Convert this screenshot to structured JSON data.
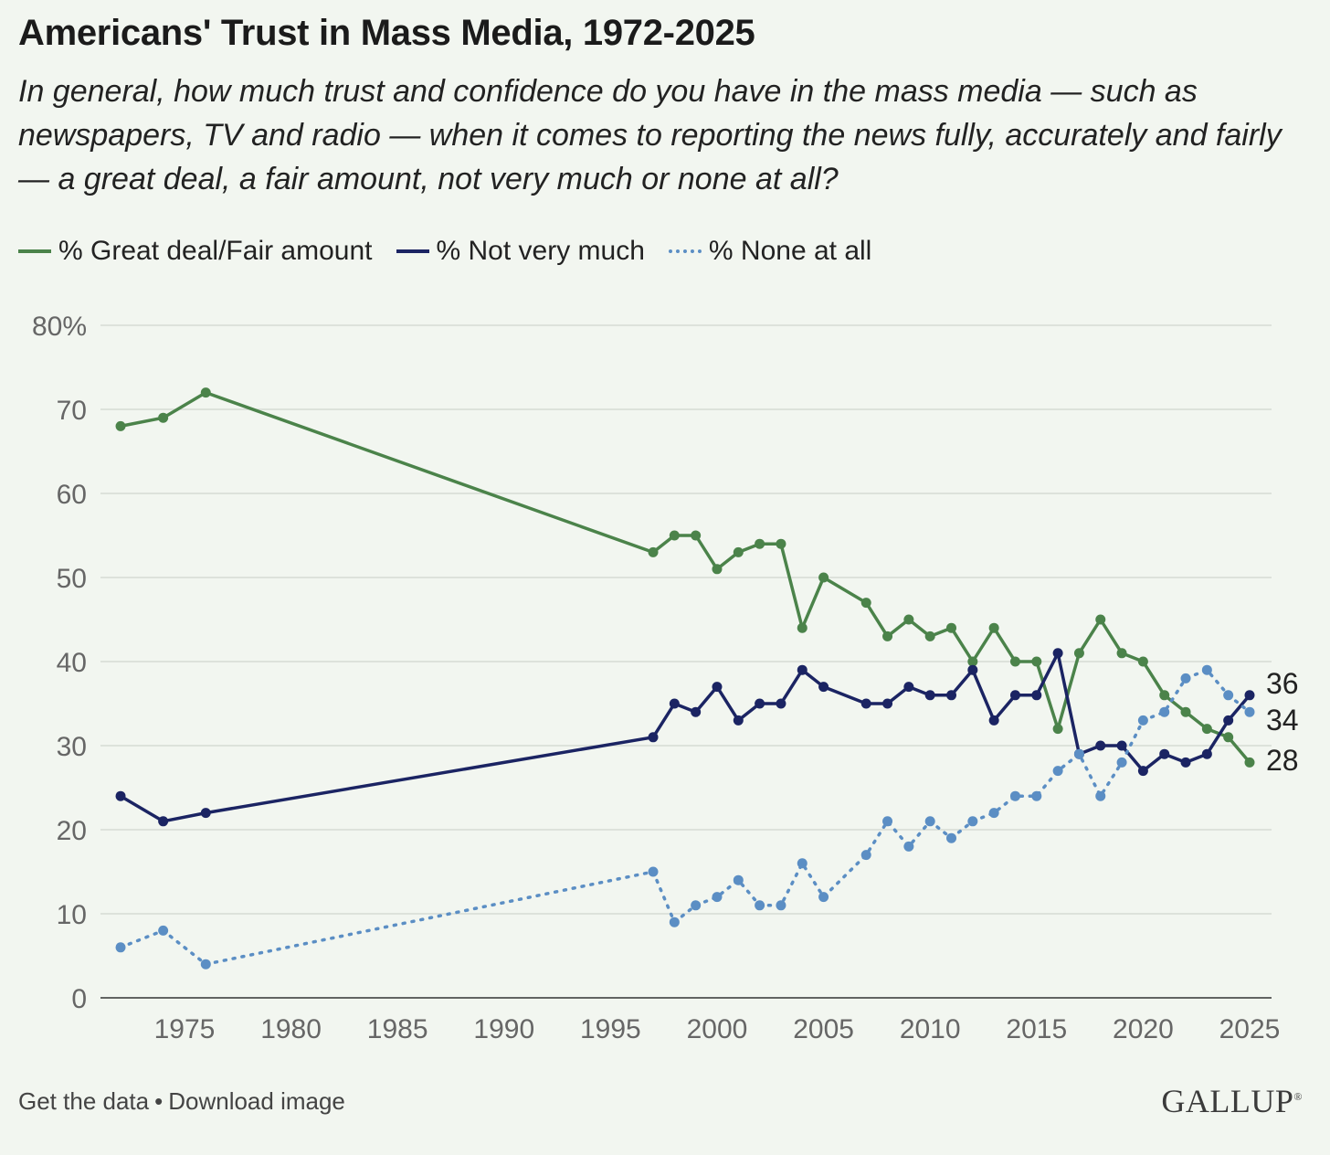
{
  "chart_data": {
    "type": "line",
    "title": "Americans' Trust in Mass Media, 1972-2025",
    "subtitle": "In general, how much trust and confidence do you have in the mass media — such as newspapers, TV and radio — when it comes to reporting the news fully, accurately and fairly — a great deal, a fair amount, not very much or none at all?",
    "xlabel": "",
    "ylabel": "",
    "xlim": [
      1971,
      2026
    ],
    "ylim": [
      0,
      80
    ],
    "x_ticks": [
      1975,
      1980,
      1985,
      1990,
      1995,
      2000,
      2005,
      2010,
      2015,
      2020,
      2025
    ],
    "y_ticks": [
      0,
      10,
      20,
      30,
      40,
      50,
      60,
      70,
      80
    ],
    "y_tick_labels": [
      "0",
      "10",
      "20",
      "30",
      "40",
      "50",
      "60",
      "70",
      "80%"
    ],
    "grid": true,
    "legend_position": "top-left",
    "x": [
      1972,
      1974,
      1976,
      1997,
      1998,
      1999,
      2000,
      2001,
      2002,
      2003,
      2004,
      2005,
      2007,
      2008,
      2009,
      2010,
      2011,
      2012,
      2013,
      2014,
      2015,
      2016,
      2017,
      2018,
      2019,
      2020,
      2021,
      2022,
      2023,
      2024,
      2025
    ],
    "series": [
      {
        "name": "% Great deal/Fair amount",
        "color": "#4b834a",
        "style": "solid",
        "values": [
          68,
          69,
          72,
          53,
          55,
          55,
          51,
          53,
          54,
          54,
          44,
          50,
          47,
          43,
          45,
          43,
          44,
          40,
          44,
          40,
          40,
          32,
          41,
          45,
          41,
          40,
          36,
          34,
          32,
          31,
          28
        ]
      },
      {
        "name": "% Not very much",
        "color": "#1b2463",
        "style": "solid",
        "values": [
          24,
          21,
          22,
          31,
          35,
          34,
          37,
          33,
          35,
          35,
          39,
          37,
          35,
          35,
          37,
          36,
          36,
          39,
          33,
          36,
          36,
          41,
          29,
          30,
          30,
          27,
          29,
          28,
          29,
          33,
          36
        ]
      },
      {
        "name": "% None at all",
        "color": "#5b8ec4",
        "style": "dotted",
        "values": [
          6,
          8,
          4,
          15,
          9,
          11,
          12,
          14,
          11,
          11,
          16,
          12,
          17,
          21,
          18,
          21,
          19,
          21,
          22,
          24,
          24,
          27,
          29,
          24,
          28,
          33,
          34,
          38,
          39,
          36,
          34
        ]
      }
    ],
    "end_labels": [
      "36",
      "34",
      "28"
    ]
  },
  "footer": {
    "get_data": "Get the data",
    "separator": "•",
    "download": "Download image"
  },
  "logo": "GALLUP"
}
